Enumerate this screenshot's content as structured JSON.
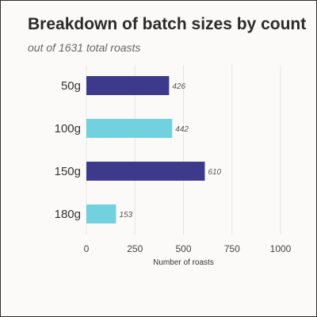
{
  "chart_data": {
    "type": "bar",
    "orientation": "horizontal",
    "title": "Breakdown of batch sizes by count",
    "subtitle": "out of 1631 total roasts",
    "categories": [
      "50g",
      "100g",
      "150g",
      "180g"
    ],
    "values": [
      426,
      442,
      610,
      153
    ],
    "data_labels": [
      "426",
      "442",
      "610",
      "153"
    ],
    "xlabel": "Number of roasts",
    "ylabel": "",
    "xlim": [
      0,
      1000
    ],
    "x_ticks": [
      0,
      250,
      500,
      750,
      1000
    ],
    "x_tick_labels": [
      "0",
      "250",
      "500",
      "750",
      "1000"
    ],
    "grid": true,
    "colors": [
      "#3d3a8c",
      "#72d1df",
      "#3d3a8c",
      "#72d1df"
    ],
    "gridline_color": "#e7e5e3"
  }
}
